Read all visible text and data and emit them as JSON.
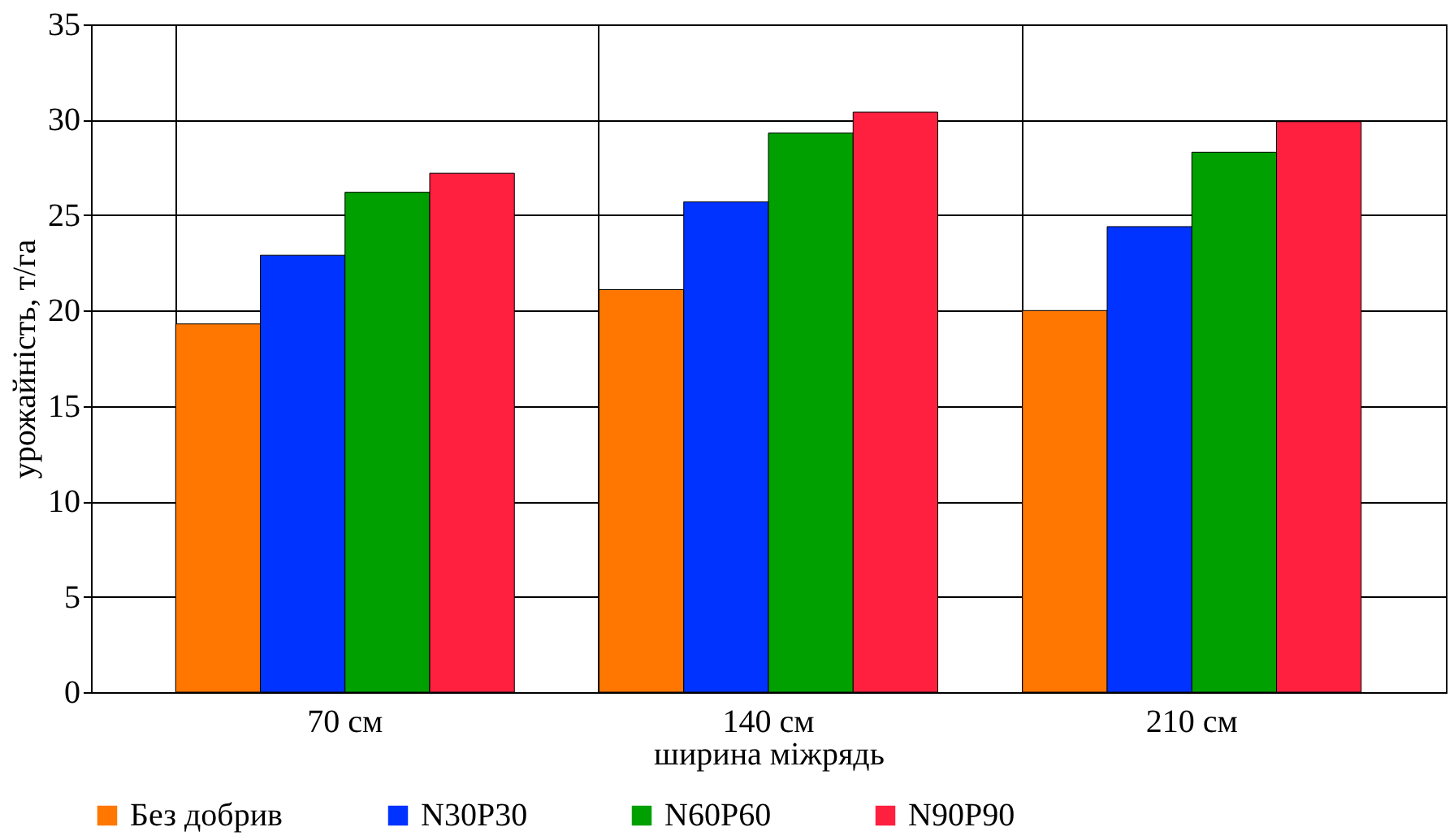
{
  "chart_data": {
    "type": "bar",
    "xlabel": "ширина міжрядь",
    "ylabel": "урожайність, т/га",
    "categories": [
      "70 см",
      "140 см",
      "210 см"
    ],
    "series": [
      {
        "name": "Без добрив",
        "color": "#ff7700",
        "values": [
          19.3,
          21.1,
          20.0
        ]
      },
      {
        "name": "N30P30",
        "color": "#0033ff",
        "values": [
          22.9,
          25.7,
          24.4
        ]
      },
      {
        "name": "N60P60",
        "color": "#00a000",
        "values": [
          26.2,
          29.3,
          28.3
        ]
      },
      {
        "name": "N90P90",
        "color": "#ff2040",
        "values": [
          27.2,
          30.4,
          29.9
        ]
      }
    ],
    "ylim": [
      0,
      35
    ],
    "yticks": [
      0,
      5,
      10,
      15,
      20,
      25,
      30,
      35
    ],
    "grid": true,
    "legend": "bottom"
  }
}
